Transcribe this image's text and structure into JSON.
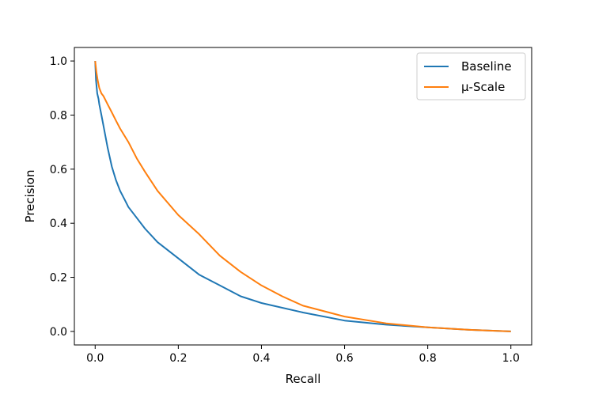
{
  "chart_data": {
    "type": "line",
    "title": "",
    "xlabel": "Recall",
    "ylabel": "Precision",
    "xlim": [
      -0.05,
      1.05
    ],
    "ylim": [
      -0.05,
      1.05
    ],
    "xticks": [
      0.0,
      0.2,
      0.4,
      0.6,
      0.8,
      1.0
    ],
    "xtick_labels": [
      "0.0",
      "0.2",
      "0.4",
      "0.6",
      "0.8",
      "1.0"
    ],
    "yticks": [
      0.0,
      0.2,
      0.4,
      0.6,
      0.8,
      1.0
    ],
    "ytick_labels": [
      "0.0",
      "0.2",
      "0.4",
      "0.6",
      "0.8",
      "1.0"
    ],
    "grid": false,
    "legend_position": "top-right",
    "series": [
      {
        "name": "Baseline",
        "color": "#1f77b4",
        "x": [
          0.0,
          0.002,
          0.005,
          0.008,
          0.01,
          0.015,
          0.02,
          0.025,
          0.03,
          0.04,
          0.05,
          0.06,
          0.07,
          0.08,
          0.1,
          0.12,
          0.15,
          0.2,
          0.25,
          0.3,
          0.35,
          0.4,
          0.5,
          0.6,
          0.7,
          0.8,
          0.9,
          1.0
        ],
        "y": [
          1.0,
          0.93,
          0.88,
          0.86,
          0.84,
          0.8,
          0.76,
          0.72,
          0.68,
          0.61,
          0.56,
          0.52,
          0.49,
          0.46,
          0.42,
          0.38,
          0.33,
          0.27,
          0.21,
          0.17,
          0.13,
          0.105,
          0.07,
          0.04,
          0.025,
          0.015,
          0.006,
          0.0
        ]
      },
      {
        "name": "μ-Scale",
        "color": "#ff7f0e",
        "x": [
          0.0,
          0.003,
          0.006,
          0.01,
          0.015,
          0.02,
          0.03,
          0.04,
          0.05,
          0.06,
          0.08,
          0.1,
          0.12,
          0.15,
          0.2,
          0.25,
          0.3,
          0.35,
          0.4,
          0.45,
          0.5,
          0.6,
          0.7,
          0.8,
          0.9,
          1.0
        ],
        "y": [
          1.0,
          0.96,
          0.93,
          0.9,
          0.88,
          0.87,
          0.84,
          0.81,
          0.78,
          0.75,
          0.7,
          0.64,
          0.59,
          0.52,
          0.43,
          0.36,
          0.28,
          0.22,
          0.17,
          0.13,
          0.095,
          0.055,
          0.03,
          0.015,
          0.006,
          0.0
        ]
      }
    ]
  }
}
